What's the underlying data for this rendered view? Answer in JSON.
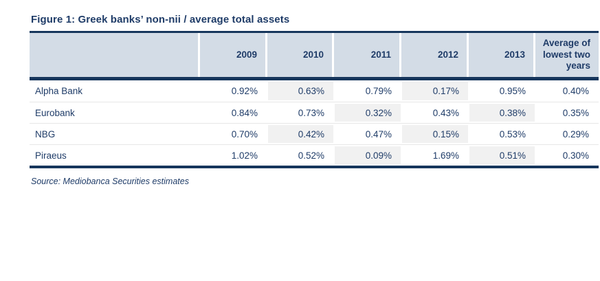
{
  "figure": {
    "title": "Figure 1: Greek banks’ non-nii / average total assets",
    "source": "Source: Mediobanca Securities estimates"
  },
  "table": {
    "columns": [
      "2009",
      "2010",
      "2011",
      "2012",
      "2013",
      "Average of lowest two years"
    ],
    "rows": [
      {
        "name": "Alpha Bank",
        "values": [
          "0.92%",
          "0.63%",
          "0.79%",
          "0.17%",
          "0.95%",
          "0.40%"
        ],
        "lowest_two_years": [
          "2010",
          "2012"
        ]
      },
      {
        "name": "Eurobank",
        "values": [
          "0.84%",
          "0.73%",
          "0.32%",
          "0.43%",
          "0.38%",
          "0.35%"
        ],
        "lowest_two_years": [
          "2011",
          "2013"
        ]
      },
      {
        "name": "NBG",
        "values": [
          "0.70%",
          "0.42%",
          "0.47%",
          "0.15%",
          "0.53%",
          "0.29%"
        ],
        "lowest_two_years": [
          "2010",
          "2012"
        ]
      },
      {
        "name": "Piraeus",
        "values": [
          "1.02%",
          "0.52%",
          "0.09%",
          "1.69%",
          "0.51%",
          "0.30%"
        ],
        "lowest_two_years": [
          "2011",
          "2013"
        ]
      }
    ]
  },
  "colors": {
    "navy_border": "#16365c",
    "navy_text": "#1f3c68",
    "header_bg": "#d3dce6",
    "highlight_cell": "#f1f1f1",
    "row_separator": "#e7e7e7",
    "background": "#ffffff"
  },
  "chart_data": {
    "type": "table",
    "title": "Figure 1: Greek banks’ non-nii / average total assets",
    "columns": [
      "2009",
      "2010",
      "2011",
      "2012",
      "2013",
      "Average of lowest two years"
    ],
    "unit": "percent",
    "rows": [
      {
        "name": "Alpha Bank",
        "values_pct": [
          0.92,
          0.63,
          0.79,
          0.17,
          0.95,
          0.4
        ]
      },
      {
        "name": "Eurobank",
        "values_pct": [
          0.84,
          0.73,
          0.32,
          0.43,
          0.38,
          0.35
        ]
      },
      {
        "name": "NBG",
        "values_pct": [
          0.7,
          0.42,
          0.47,
          0.15,
          0.53,
          0.29
        ]
      },
      {
        "name": "Piraeus",
        "values_pct": [
          1.02,
          0.52,
          0.09,
          1.69,
          0.51,
          0.3
        ]
      }
    ],
    "highlight_rule": "lowest two yearly values per bank are shaded light grey",
    "source": "Source: Mediobanca Securities estimates",
    "layout": {
      "header_background": "#d3dce6",
      "borders": "navy top/middle/bottom rules",
      "value_alignment": "right"
    }
  }
}
